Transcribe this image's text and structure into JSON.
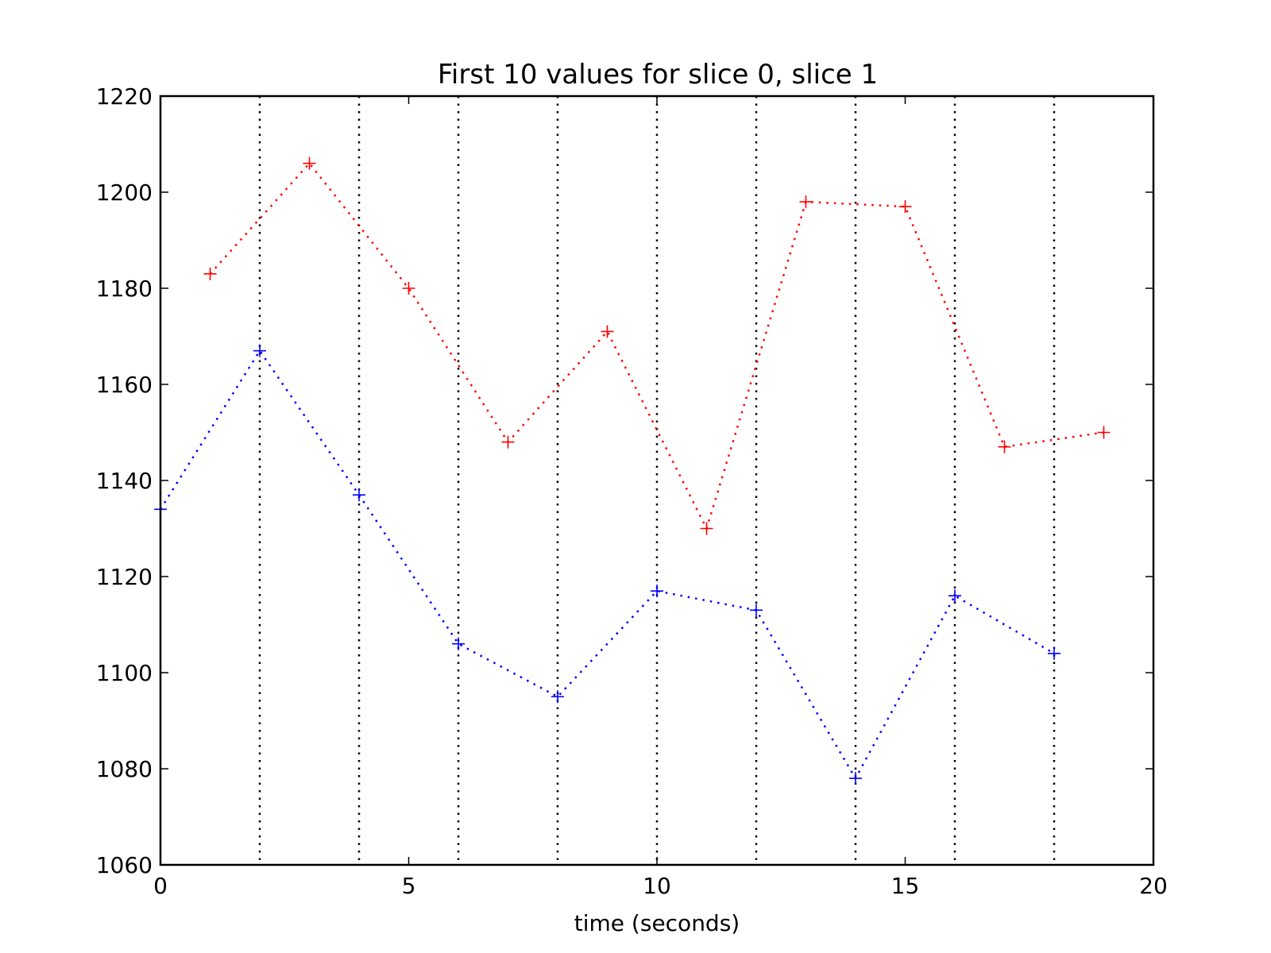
{
  "chart_data": {
    "type": "line",
    "title": "First 10 values for slice 0, slice 1",
    "xlabel": "time (seconds)",
    "ylabel": "",
    "xlim": [
      0,
      20
    ],
    "ylim": [
      1060,
      1220
    ],
    "xticks": [
      0,
      5,
      10,
      15,
      20
    ],
    "yticks": [
      1060,
      1080,
      1100,
      1120,
      1140,
      1160,
      1180,
      1200,
      1220
    ],
    "xtick_labels": [
      "0",
      "5",
      "10",
      "15",
      "20"
    ],
    "ytick_labels": [
      "1060",
      "1080",
      "1100",
      "1120",
      "1140",
      "1160",
      "1180",
      "1200",
      "1220"
    ],
    "vlines": {
      "x": [
        2,
        4,
        6,
        8,
        10,
        12,
        14,
        16,
        18
      ],
      "color": "#000000",
      "style": "dotted"
    },
    "marker": "+",
    "line_style": "dotted",
    "grid": false,
    "legend": "none",
    "series": [
      {
        "color": "#0000ff",
        "x": [
          0,
          2,
          4,
          6,
          8,
          10,
          12,
          14,
          16,
          18
        ],
        "y": [
          1134,
          1167,
          1137,
          1106,
          1095,
          1117,
          1113,
          1078,
          1116,
          1104
        ]
      },
      {
        "color": "#ff0000",
        "x": [
          1,
          3,
          5,
          7,
          9,
          11,
          13,
          15,
          17,
          19
        ],
        "y": [
          1183,
          1206,
          1180,
          1148,
          1171,
          1130,
          1198,
          1197,
          1147,
          1150
        ]
      }
    ]
  }
}
